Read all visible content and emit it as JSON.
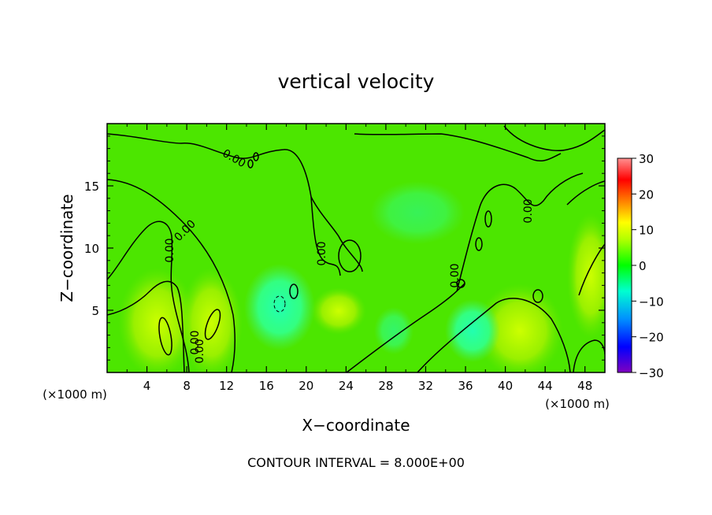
{
  "chart_data": {
    "type": "heatmap",
    "title": "vertical velocity",
    "xlabel": "X−coordinate",
    "ylabel": "Z−coordinate",
    "x_unit_left": "(×1000 m)",
    "x_unit_right": "(×1000 m)",
    "footer": "CONTOUR INTERVAL = 8.000E+00",
    "xlim": [
      0,
      50
    ],
    "ylim": [
      0,
      20
    ],
    "x_ticks": [
      4,
      8,
      12,
      16,
      20,
      24,
      28,
      32,
      36,
      40,
      44,
      48
    ],
    "y_ticks": [
      5,
      10,
      15
    ],
    "x_tick_labels": [
      "4",
      "8",
      "12",
      "16",
      "20",
      "24",
      "28",
      "32",
      "36",
      "40",
      "44",
      "48"
    ],
    "y_tick_labels": [
      "5",
      "10",
      "15"
    ],
    "colorbar": {
      "range": [
        -30,
        30
      ],
      "ticks": [
        30,
        20,
        10,
        0,
        -10,
        -20,
        -30
      ],
      "tick_labels": [
        "30",
        "20",
        "10",
        "0",
        "−10",
        "−20",
        "−30"
      ],
      "colors": [
        "#ff9090",
        "#ff0000",
        "#ff8000",
        "#ffff00",
        "#00ff00",
        "#00ffd0",
        "#0090ff",
        "#0000ff",
        "#8000c0"
      ]
    },
    "contour_interval": 8.0,
    "contour_labels": [
      "0.00",
      "0.00",
      "0.00",
      "0.00",
      "0.00",
      "0.00",
      "0.00",
      "0.00"
    ],
    "background_value": 2
  }
}
